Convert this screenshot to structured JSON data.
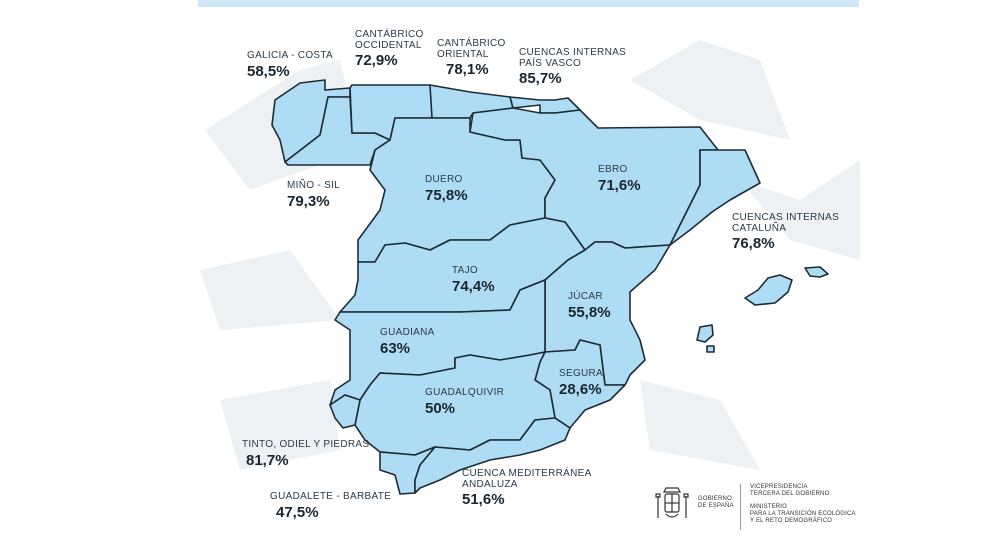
{
  "colors": {
    "region_fill": "#aedcf5",
    "region_stroke": "#1d2b36",
    "background_shapes": "#eef1f4",
    "top_bar": "#cfe7f6"
  },
  "basins": [
    {
      "id": "galicia",
      "name": "GALICIA - COSTA",
      "value": "58,5%"
    },
    {
      "id": "cantabrico-occ",
      "name_lines": [
        "CANTÁBRICO",
        "OCCIDENTAL"
      ],
      "value": "72,9%"
    },
    {
      "id": "cantabrico-or",
      "name_lines": [
        "CANTÁBRICO",
        "ORIENTAL"
      ],
      "value": "78,1%"
    },
    {
      "id": "pais-vasco",
      "name_lines": [
        "CUENCAS INTERNAS",
        "PAÍS VASCO"
      ],
      "value": "85,7%"
    },
    {
      "id": "mino",
      "name": "MIÑO - SIL",
      "value": "79,3%"
    },
    {
      "id": "duero",
      "name": "DUERO",
      "value": "75,8%"
    },
    {
      "id": "ebro",
      "name": "EBRO",
      "value": "71,6%"
    },
    {
      "id": "cataluna",
      "name_lines": [
        "CUENCAS INTERNAS",
        "CATALUÑA"
      ],
      "value": "76,8%"
    },
    {
      "id": "tajo",
      "name": "TAJO",
      "value": "74,4%"
    },
    {
      "id": "jucar",
      "name": "JÚCAR",
      "value": "55,8%"
    },
    {
      "id": "guadiana",
      "name": "GUADIANA",
      "value": "63%"
    },
    {
      "id": "segura",
      "name": "SEGURA",
      "value": "28,6%"
    },
    {
      "id": "guadalquivir",
      "name": "GUADALQUIVIR",
      "value": "50%"
    },
    {
      "id": "tinto",
      "name": "TINTO, ODIEL Y PIEDRAS",
      "value": "81,7%"
    },
    {
      "id": "guadalete",
      "name": "GUADALETE - BARBATE",
      "value": "47,5%"
    },
    {
      "id": "mediterranea",
      "name_lines": [
        "CUENCA MEDITERRÁNEA",
        "ANDALUZA"
      ],
      "value": "51,6%"
    }
  ],
  "footer": {
    "gov_lines": [
      "GOBIERNO",
      "DE ESPAÑA"
    ],
    "vice_lines": [
      "VICEPRESIDENCIA",
      "TERCERA DEL GOBIERNO"
    ],
    "ministry_lines": [
      "MINISTERIO",
      "PARA LA TRANSICIÓN ECOLÓGICA",
      "Y EL RETO DEMOGRÁFICO"
    ]
  }
}
